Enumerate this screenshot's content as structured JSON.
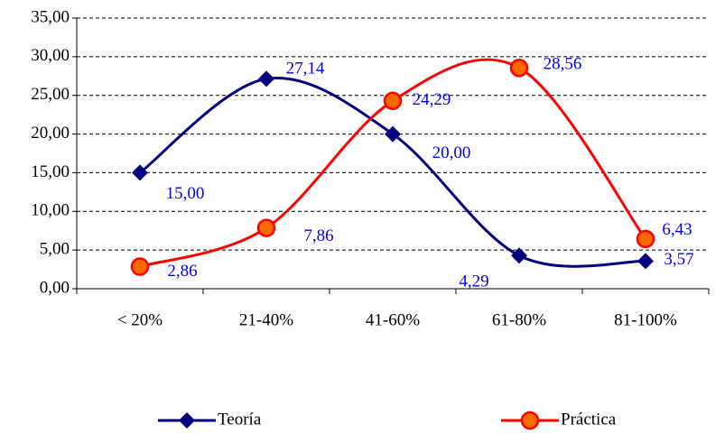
{
  "chart_data": {
    "type": "line",
    "categories": [
      "< 20%",
      "21-40%",
      "41-60%",
      "61-80%",
      "81-100%"
    ],
    "series": [
      {
        "name": "Teoría",
        "color": "#000080",
        "marker": "diamond",
        "values": [
          15,
          27.14,
          20,
          4.29,
          3.57
        ],
        "value_labels": [
          "15,00",
          "27,14",
          "20,00",
          "4,29",
          "3,57"
        ]
      },
      {
        "name": "Práctica",
        "color": "#ff0000",
        "marker": "circle",
        "values": [
          2.86,
          7.86,
          24.29,
          28.56,
          6.43
        ],
        "value_labels": [
          "2,86",
          "7,86",
          "24,29",
          "28,56",
          "6,43"
        ]
      }
    ],
    "ylim": [
      0,
      35
    ],
    "yticks": [
      {
        "value": 0,
        "label": "0,00"
      },
      {
        "value": 5,
        "label": "5,00"
      },
      {
        "value": 10,
        "label": "10,00"
      },
      {
        "value": 15,
        "label": "15,00"
      },
      {
        "value": 20,
        "label": "20,00"
      },
      {
        "value": 25,
        "label": "25,00"
      },
      {
        "value": 30,
        "label": "30,00"
      },
      {
        "value": 35,
        "label": "35,00"
      }
    ],
    "grid": true,
    "smooth": true,
    "legend": "bottom"
  }
}
